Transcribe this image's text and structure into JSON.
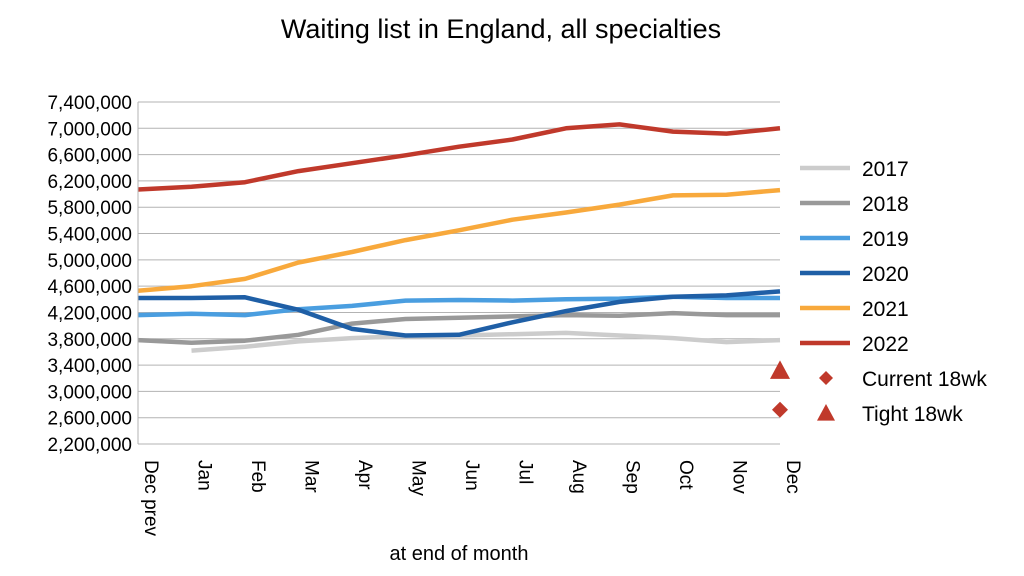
{
  "chart_data": {
    "type": "line",
    "title": "Waiting list in England, all specialties",
    "xlabel": "at end of month",
    "ylabel": "",
    "ylim": [
      2200000,
      7400000
    ],
    "yticks": [
      2200000,
      2600000,
      3000000,
      3400000,
      3800000,
      4200000,
      4600000,
      5000000,
      5400000,
      5800000,
      6200000,
      6600000,
      7000000,
      7400000
    ],
    "categories": [
      "Dec prev",
      "Jan",
      "Feb",
      "Mar",
      "Apr",
      "May",
      "Jun",
      "Jul",
      "Aug",
      "Sep",
      "Oct",
      "Nov",
      "Dec"
    ],
    "grid": true,
    "legend_position": "right",
    "series": [
      {
        "name": "2017",
        "color": "#cccccc",
        "values": [
          null,
          3620000,
          3680000,
          3760000,
          3810000,
          3840000,
          3850000,
          3870000,
          3890000,
          3850000,
          3810000,
          3750000,
          3780000
        ]
      },
      {
        "name": "2018",
        "color": "#999999",
        "values": [
          3780000,
          3740000,
          3770000,
          3860000,
          4030000,
          4100000,
          4120000,
          4140000,
          4160000,
          4150000,
          4190000,
          4160000,
          4160000
        ]
      },
      {
        "name": "2019",
        "color": "#4a9ee0",
        "values": [
          4160000,
          4180000,
          4160000,
          4250000,
          4300000,
          4380000,
          4390000,
          4380000,
          4400000,
          4410000,
          4440000,
          4420000,
          4420000
        ]
      },
      {
        "name": "2020",
        "color": "#1f5fa6",
        "values": [
          4420000,
          4420000,
          4430000,
          4240000,
          3950000,
          3850000,
          3860000,
          4050000,
          4220000,
          4360000,
          4440000,
          4460000,
          4520000
        ]
      },
      {
        "name": "2021",
        "color": "#f8a93c",
        "values": [
          4530000,
          4600000,
          4710000,
          4960000,
          5120000,
          5300000,
          5450000,
          5610000,
          5720000,
          5840000,
          5980000,
          5990000,
          6060000
        ]
      },
      {
        "name": "2022",
        "color": "#c0392b",
        "values": [
          6070000,
          6110000,
          6180000,
          6350000,
          6470000,
          6590000,
          6720000,
          6830000,
          7000000,
          7060000,
          6950000,
          6920000,
          7000000
        ]
      }
    ],
    "markers": [
      {
        "name": "Current 18wk",
        "shape": "diamond",
        "color": "#c0392b",
        "category": "Dec",
        "value": 2720000
      },
      {
        "name": "Tight 18wk",
        "shape": "triangle",
        "color": "#c0392b",
        "category": "Dec",
        "value": 3320000
      }
    ]
  }
}
